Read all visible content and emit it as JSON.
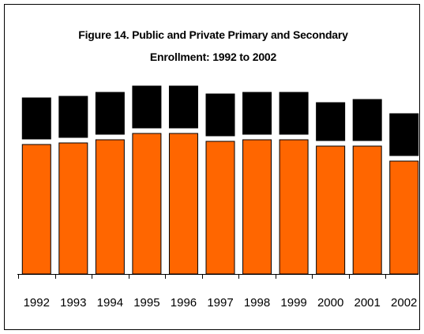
{
  "chart_data": {
    "type": "stacked_bar",
    "title": "Figure 14. Public and Private Primary and Secondary Enrollment: 1992 to 2002",
    "categories": [
      "1992",
      "1993",
      "1994",
      "1995",
      "1996",
      "1997",
      "1998",
      "1999",
      "2000",
      "2001",
      "2002"
    ],
    "series": [
      {
        "color": "#ff6600",
        "values": [
          164,
          166,
          170,
          178,
          178,
          168,
          170,
          170,
          162,
          162,
          143
        ]
      },
      {
        "color": "#000000",
        "values": [
          59,
          59,
          60,
          60,
          60,
          60,
          60,
          60,
          55,
          59,
          60
        ]
      }
    ],
    "ylim": [
      0,
      250
    ]
  }
}
